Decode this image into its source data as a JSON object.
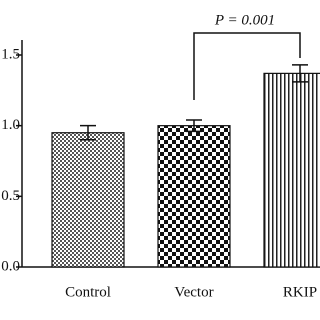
{
  "chart_data": {
    "type": "bar",
    "categories": [
      "Control",
      "Vector",
      "RKIP"
    ],
    "values": [
      0.95,
      1.0,
      1.37
    ],
    "errors": [
      0.05,
      0.04,
      0.06
    ],
    "ylim": [
      0,
      1.5
    ],
    "yticks": [
      {
        "value": 0,
        "label": "0.0"
      },
      {
        "value": 0.5,
        "label": "0.5"
      },
      {
        "value": 1,
        "label": "1.0"
      },
      {
        "value": 1.5,
        "label": "1.5"
      }
    ],
    "annotation": "P = 0.001"
  }
}
